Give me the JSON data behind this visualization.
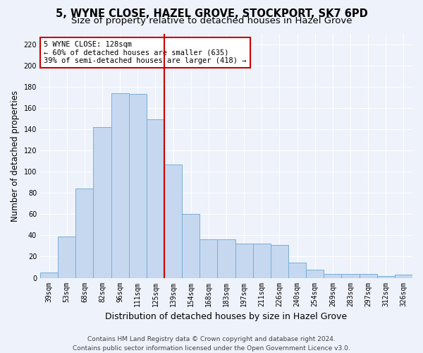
{
  "title_line1": "5, WYNE CLOSE, HAZEL GROVE, STOCKPORT, SK7 6PD",
  "title_line2": "Size of property relative to detached houses in Hazel Grove",
  "xlabel": "Distribution of detached houses by size in Hazel Grove",
  "ylabel": "Number of detached properties",
  "categories": [
    "39sqm",
    "53sqm",
    "68sqm",
    "82sqm",
    "96sqm",
    "111sqm",
    "125sqm",
    "139sqm",
    "154sqm",
    "168sqm",
    "183sqm",
    "197sqm",
    "211sqm",
    "226sqm",
    "240sqm",
    "254sqm",
    "269sqm",
    "283sqm",
    "297sqm",
    "312sqm",
    "326sqm"
  ],
  "values": [
    5,
    39,
    84,
    142,
    174,
    173,
    149,
    107,
    60,
    36,
    36,
    32,
    32,
    31,
    14,
    8,
    4,
    4,
    4,
    2,
    3
  ],
  "bar_color": "#c5d8f0",
  "bar_edge_color": "#7aaed6",
  "vline_x": 6.5,
  "vline_color": "#cc0000",
  "annotation_text": "5 WYNE CLOSE: 128sqm\n← 60% of detached houses are smaller (635)\n39% of semi-detached houses are larger (418) →",
  "annotation_box_color": "#ffffff",
  "annotation_box_edge_color": "#cc0000",
  "footer_line1": "Contains HM Land Registry data © Crown copyright and database right 2024.",
  "footer_line2": "Contains public sector information licensed under the Open Government Licence v3.0.",
  "ylim": [
    0,
    230
  ],
  "yticks": [
    0,
    20,
    40,
    60,
    80,
    100,
    120,
    140,
    160,
    180,
    200,
    220
  ],
  "background_color": "#eef2fb",
  "grid_color": "#ffffff",
  "title_fontsize": 10.5,
  "subtitle_fontsize": 9.5,
  "ylabel_fontsize": 8.5,
  "xlabel_fontsize": 9,
  "tick_fontsize": 7,
  "annotation_fontsize": 7.5,
  "footer_fontsize": 6.5
}
